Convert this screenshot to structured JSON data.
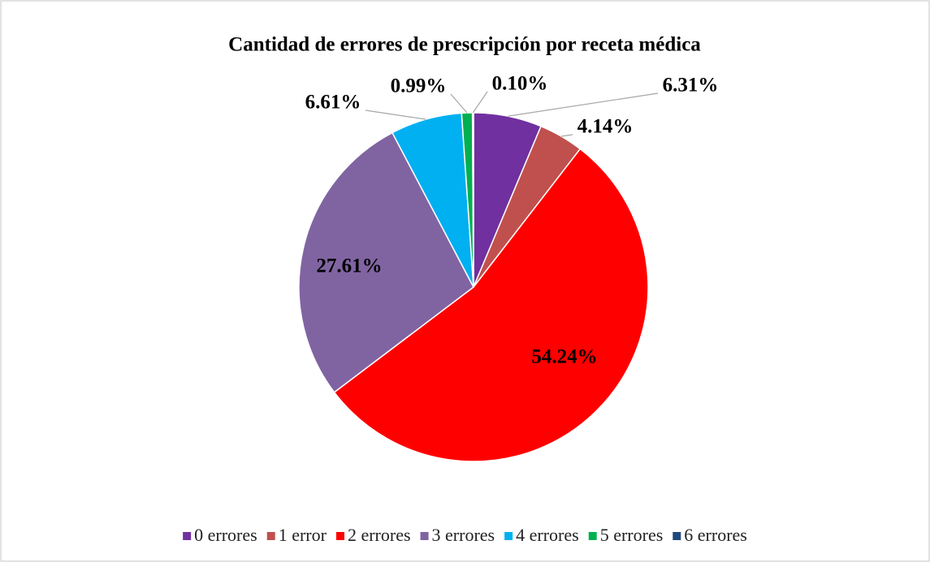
{
  "chart_data": {
    "type": "pie",
    "title": "Cantidad de errores de prescripción por receta médica",
    "categories": [
      "0 errores",
      "1 error",
      "2 errores",
      "3 errores",
      "4 errores",
      "5 errores",
      "6 errores"
    ],
    "values": [
      6.31,
      4.14,
      54.24,
      27.61,
      6.61,
      0.99,
      0.1
    ],
    "value_labels": [
      "6.31%",
      "4.14%",
      "54.24%",
      "27.61%",
      "6.61%",
      "0.99%",
      "0.10%"
    ],
    "colors": [
      "#7030a0",
      "#c0504d",
      "#ff0000",
      "#8064a2",
      "#00b0f0",
      "#00b050",
      "#1f497d"
    ],
    "legend": "bottom"
  }
}
